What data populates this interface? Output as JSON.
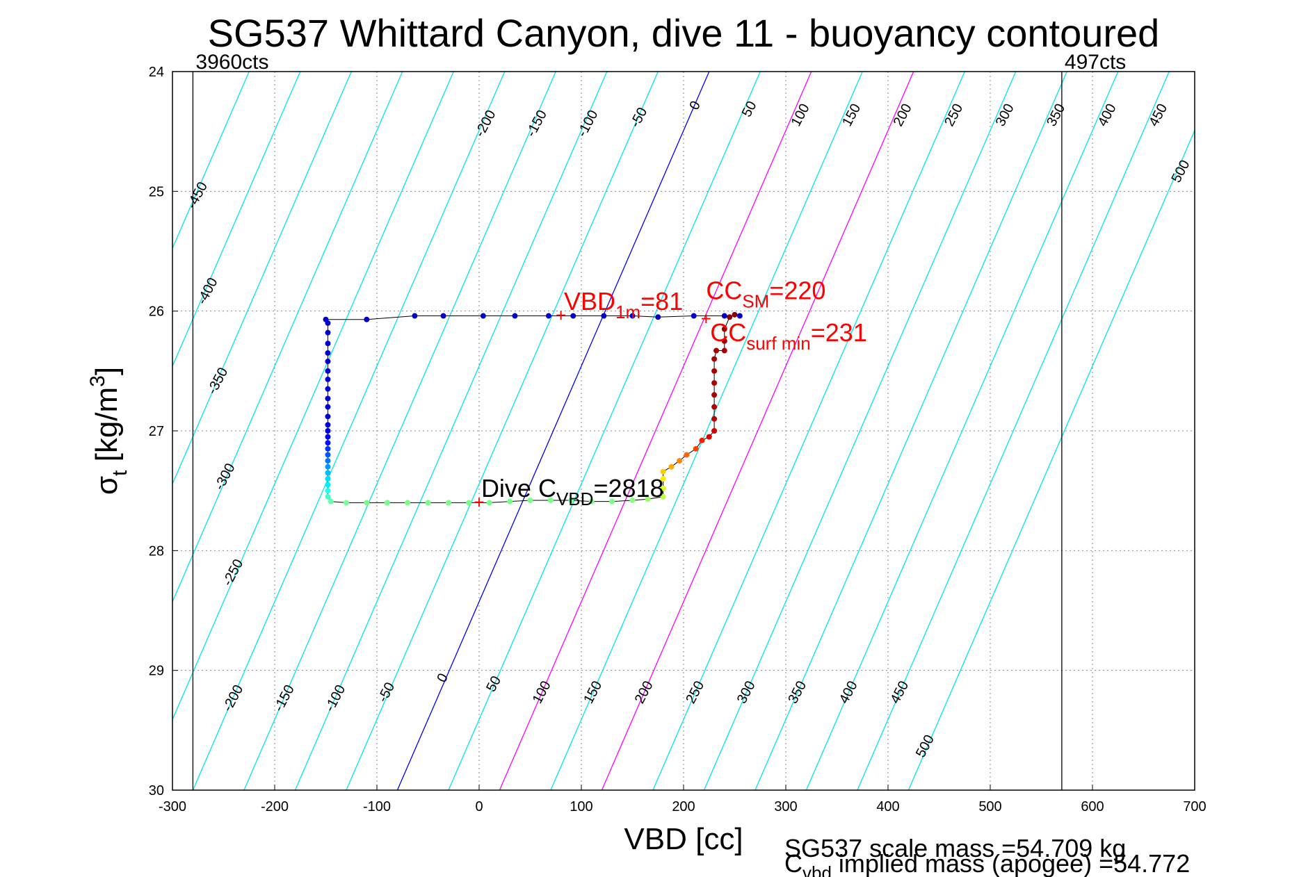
{
  "chart_data": {
    "type": "scatter",
    "title": "SG537 Whittard Canyon, dive 11 - buoyancy contoured",
    "xlabel": "VBD [cc]",
    "ylabel": {
      "base": "σ",
      "sub": "t",
      "rest": " [kg/m",
      "sup": "3",
      "close": "]"
    },
    "xlim": [
      -300,
      700
    ],
    "ylim": [
      24,
      30
    ],
    "y_inverted": true,
    "grid": true,
    "xticks": [
      -300,
      -200,
      -100,
      0,
      100,
      200,
      300,
      400,
      500,
      600,
      700
    ],
    "yticks": [
      24,
      25,
      26,
      27,
      28,
      29,
      30
    ],
    "limit_lines": [
      {
        "x": -280,
        "label": "3960cts"
      },
      {
        "x": 570,
        "label": "497cts"
      }
    ],
    "contours": {
      "levels": [
        -450,
        -400,
        -350,
        -300,
        -250,
        -200,
        -150,
        -100,
        -50,
        0,
        50,
        100,
        150,
        200,
        250,
        300,
        350,
        400,
        450,
        500
      ],
      "x_at_sigma24_level0": 225,
      "x_at_sigma30_level0": -80,
      "colors": {
        "default": "#00e5ee",
        "zero": "#0000ff",
        "highlight": "#ff00ff"
      },
      "highlight_levels": [
        100,
        200
      ],
      "labels_top": [
        {
          "text": "-450",
          "x": -272,
          "y": 25.05
        },
        {
          "text": "-400",
          "x": -262,
          "y": 25.85
        },
        {
          "text": "-350",
          "x": -252,
          "y": 26.6
        },
        {
          "text": "-300",
          "x": -245,
          "y": 27.4
        },
        {
          "text": "-250",
          "x": -237,
          "y": 28.2
        },
        {
          "text": "-200",
          "x": 10,
          "y": 24.45
        },
        {
          "text": "-150",
          "x": 60,
          "y": 24.45
        },
        {
          "text": "-100",
          "x": 110,
          "y": 24.45
        },
        {
          "text": "-50",
          "x": 160,
          "y": 24.4
        },
        {
          "text": "0",
          "x": 215,
          "y": 24.3
        },
        {
          "text": "50",
          "x": 268,
          "y": 24.33
        },
        {
          "text": "100",
          "x": 318,
          "y": 24.38
        },
        {
          "text": "150",
          "x": 368,
          "y": 24.38
        },
        {
          "text": "200",
          "x": 418,
          "y": 24.38
        },
        {
          "text": "250",
          "x": 468,
          "y": 24.38
        },
        {
          "text": "300",
          "x": 518,
          "y": 24.38
        },
        {
          "text": "350",
          "x": 568,
          "y": 24.38
        },
        {
          "text": "400",
          "x": 618,
          "y": 24.38
        },
        {
          "text": "450",
          "x": 668,
          "y": 24.38
        },
        {
          "text": "500",
          "x": 690,
          "y": 24.85
        }
      ],
      "labels_bottom": [
        {
          "text": "-200",
          "x": -237,
          "y": 29.25
        },
        {
          "text": "-150",
          "x": -187,
          "y": 29.25
        },
        {
          "text": "-100",
          "x": -137,
          "y": 29.25
        },
        {
          "text": "-50",
          "x": -87,
          "y": 29.2
        },
        {
          "text": "0",
          "x": -32,
          "y": 29.08
        },
        {
          "text": "50",
          "x": 18,
          "y": 29.13
        },
        {
          "text": "100",
          "x": 65,
          "y": 29.2
        },
        {
          "text": "150",
          "x": 115,
          "y": 29.2
        },
        {
          "text": "200",
          "x": 165,
          "y": 29.2
        },
        {
          "text": "250",
          "x": 215,
          "y": 29.2
        },
        {
          "text": "300",
          "x": 265,
          "y": 29.2
        },
        {
          "text": "350",
          "x": 315,
          "y": 29.2
        },
        {
          "text": "400",
          "x": 365,
          "y": 29.2
        },
        {
          "text": "450",
          "x": 415,
          "y": 29.2
        },
        {
          "text": "500",
          "x": 440,
          "y": 29.65
        }
      ]
    },
    "series": [
      {
        "type": "dive_track",
        "points": [
          {
            "x": -150,
            "y": 26.07,
            "c": "#0000cc"
          },
          {
            "x": -110,
            "y": 26.07,
            "c": "#0000cc"
          },
          {
            "x": -63,
            "y": 26.04,
            "c": "#0000cc"
          },
          {
            "x": -35,
            "y": 26.04,
            "c": "#0000cc"
          },
          {
            "x": 4,
            "y": 26.04,
            "c": "#0000cc"
          },
          {
            "x": 35,
            "y": 26.04,
            "c": "#0000cc"
          },
          {
            "x": 68,
            "y": 26.04,
            "c": "#0000cc"
          },
          {
            "x": 92,
            "y": 26.04,
            "c": "#0000cc"
          },
          {
            "x": 122,
            "y": 26.04,
            "c": "#0000cc"
          },
          {
            "x": 150,
            "y": 26.04,
            "c": "#0000cc"
          },
          {
            "x": 175,
            "y": 26.05,
            "c": "#0000cc"
          },
          {
            "x": 210,
            "y": 26.04,
            "c": "#0000cc"
          },
          {
            "x": 240,
            "y": 26.04,
            "c": "#0000cc"
          },
          {
            "x": 255,
            "y": 26.04,
            "c": "#0000cc"
          },
          {
            "x": -148,
            "y": 26.1,
            "c": "#0000cc"
          },
          {
            "x": -148,
            "y": 26.18,
            "c": "#0000cc"
          },
          {
            "x": -148,
            "y": 26.27,
            "c": "#0000cc"
          },
          {
            "x": -148,
            "y": 26.35,
            "c": "#0000cc"
          },
          {
            "x": -148,
            "y": 26.42,
            "c": "#0000cc"
          },
          {
            "x": -148,
            "y": 26.5,
            "c": "#0000cc"
          },
          {
            "x": -148,
            "y": 26.57,
            "c": "#0000cc"
          },
          {
            "x": -148,
            "y": 26.65,
            "c": "#0000cc"
          },
          {
            "x": -148,
            "y": 26.73,
            "c": "#0000cc"
          },
          {
            "x": -148,
            "y": 26.8,
            "c": "#0000cc"
          },
          {
            "x": -148,
            "y": 26.88,
            "c": "#0000cc"
          },
          {
            "x": -148,
            "y": 26.95,
            "c": "#0000dd"
          },
          {
            "x": -148,
            "y": 27.0,
            "c": "#0000dd"
          },
          {
            "x": -148,
            "y": 27.05,
            "c": "#0000ee"
          },
          {
            "x": -148,
            "y": 27.1,
            "c": "#0011ff"
          },
          {
            "x": -148,
            "y": 27.15,
            "c": "#0033ff"
          },
          {
            "x": -148,
            "y": 27.2,
            "c": "#0055ff"
          },
          {
            "x": -148,
            "y": 27.25,
            "c": "#0077ff"
          },
          {
            "x": -148,
            "y": 27.3,
            "c": "#0099ff"
          },
          {
            "x": -148,
            "y": 27.35,
            "c": "#00bbff"
          },
          {
            "x": -148,
            "y": 27.4,
            "c": "#00ddff"
          },
          {
            "x": -148,
            "y": 27.45,
            "c": "#00eeff"
          },
          {
            "x": -148,
            "y": 27.5,
            "c": "#22ffee"
          },
          {
            "x": -148,
            "y": 27.55,
            "c": "#44ffcc"
          },
          {
            "x": -145,
            "y": 27.59,
            "c": "#66ffaa"
          },
          {
            "x": -130,
            "y": 27.6,
            "c": "#77ff99"
          },
          {
            "x": -110,
            "y": 27.6,
            "c": "#77ff88"
          },
          {
            "x": -90,
            "y": 27.6,
            "c": "#77ff88"
          },
          {
            "x": -70,
            "y": 27.6,
            "c": "#77ff88"
          },
          {
            "x": -50,
            "y": 27.6,
            "c": "#77ff88"
          },
          {
            "x": -30,
            "y": 27.6,
            "c": "#77ff88"
          },
          {
            "x": -10,
            "y": 27.6,
            "c": "#77ff88"
          },
          {
            "x": 10,
            "y": 27.6,
            "c": "#77ff88"
          },
          {
            "x": 30,
            "y": 27.59,
            "c": "#77ff88"
          },
          {
            "x": 50,
            "y": 27.58,
            "c": "#77ff88"
          },
          {
            "x": 70,
            "y": 27.58,
            "c": "#77ff88"
          },
          {
            "x": 90,
            "y": 27.58,
            "c": "#77ff88"
          },
          {
            "x": 110,
            "y": 27.59,
            "c": "#77ff88"
          },
          {
            "x": 130,
            "y": 27.59,
            "c": "#77ff88"
          },
          {
            "x": 150,
            "y": 27.58,
            "c": "#88ff77"
          },
          {
            "x": 165,
            "y": 27.57,
            "c": "#99ff66"
          },
          {
            "x": 180,
            "y": 27.55,
            "c": "#bbff44"
          },
          {
            "x": 180,
            "y": 27.48,
            "c": "#ddff22"
          },
          {
            "x": 180,
            "y": 27.4,
            "c": "#ffee00"
          },
          {
            "x": 180,
            "y": 27.34,
            "c": "#ffcc00"
          },
          {
            "x": 188,
            "y": 27.3,
            "c": "#ffaa00"
          },
          {
            "x": 196,
            "y": 27.25,
            "c": "#ff8800"
          },
          {
            "x": 203,
            "y": 27.2,
            "c": "#ff6600"
          },
          {
            "x": 212,
            "y": 27.15,
            "c": "#ff4400"
          },
          {
            "x": 218,
            "y": 27.08,
            "c": "#ee2200"
          },
          {
            "x": 225,
            "y": 27.05,
            "c": "#dd0000"
          },
          {
            "x": 230,
            "y": 27.0,
            "c": "#cc0000"
          },
          {
            "x": 230,
            "y": 26.9,
            "c": "#bb0000"
          },
          {
            "x": 230,
            "y": 26.8,
            "c": "#aa0000"
          },
          {
            "x": 230,
            "y": 26.7,
            "c": "#aa0000"
          },
          {
            "x": 230,
            "y": 26.6,
            "c": "#aa0000"
          },
          {
            "x": 230,
            "y": 26.5,
            "c": "#aa0000"
          },
          {
            "x": 230,
            "y": 26.4,
            "c": "#aa0000"
          },
          {
            "x": 232,
            "y": 26.33,
            "c": "#aa0000"
          },
          {
            "x": 240,
            "y": 26.33,
            "c": "#aa0000"
          },
          {
            "x": 240,
            "y": 26.25,
            "c": "#990000"
          },
          {
            "x": 240,
            "y": 26.15,
            "c": "#990000"
          },
          {
            "x": 245,
            "y": 26.05,
            "c": "#880000"
          },
          {
            "x": 250,
            "y": 26.03,
            "c": "#880000"
          }
        ]
      }
    ],
    "markers": [
      {
        "x": 80,
        "y": 26.04,
        "symbol": "+"
      },
      {
        "x": 0,
        "y": 27.6,
        "symbol": "+"
      },
      {
        "x": 222,
        "y": 26.07,
        "symbol": "+"
      }
    ],
    "annotations": [
      {
        "id": "vbd",
        "text": "VBD",
        "sub": "1m",
        "rest": "=81",
        "x": 83,
        "y": 25.99,
        "color": "#ff0000"
      },
      {
        "id": "ccsm",
        "text": "CC",
        "sub": "SM",
        "rest": "=220",
        "x": 222,
        "y": 25.9,
        "color": "#ff0000"
      },
      {
        "id": "ccsurf",
        "text": "CC",
        "sub": "surf min",
        "rest": "=231",
        "x": 226,
        "y": 26.25,
        "color": "#ff0000"
      },
      {
        "id": "dive",
        "text": "Dive C",
        "sub": "VBD",
        "rest": "=2818",
        "x": 2,
        "y": 27.55,
        "color": "#000000"
      }
    ],
    "footer": {
      "line1": "SG537 scale mass =54.709 kg",
      "line2_base": "C",
      "line2_sub": "vbd",
      "line2_rest": " implied mass (apogee) =54.772"
    }
  }
}
